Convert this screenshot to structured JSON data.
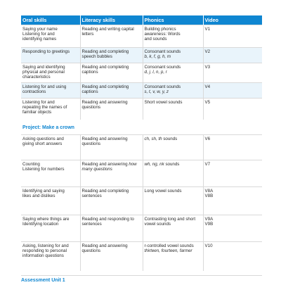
{
  "headers": [
    "Oral skills",
    "Literacy skills",
    "Phonics",
    "Video"
  ],
  "project_label": "Project: Make a crown",
  "rows_before": [
    {
      "oral": [
        "Saying your name",
        "Listening for and",
        "identifying names"
      ],
      "literacy": [
        "Reading and writing capital",
        "letters"
      ],
      "phonics": [
        "Building phonics",
        "awareness: Words",
        "and sounds"
      ],
      "phonics_italic": [],
      "video": [
        "V1"
      ],
      "height": 32,
      "alt": false
    },
    {
      "oral": [
        "Responding to greetings"
      ],
      "literacy": [
        "Reading and completing",
        "speech bubbles"
      ],
      "phonics": [
        "Consonant sounds"
      ],
      "phonics_italic": [
        "b, k, f, g, h, m"
      ],
      "video": [
        "V2"
      ],
      "height": 22,
      "alt": true
    },
    {
      "oral": [
        "Saying and identifying",
        "physical and personal",
        "characteristics"
      ],
      "literacy": [
        "Reading and completing",
        "captions"
      ],
      "phonics": [
        "Consonant sounds"
      ],
      "phonics_italic": [
        "d, j, l, n, p, r"
      ],
      "video": [
        "V3"
      ],
      "height": 28,
      "alt": false
    },
    {
      "oral": [
        "Listening for and using",
        "contractions"
      ],
      "literacy": [
        "Reading and completing",
        "captions"
      ],
      "phonics": [
        "Consonant sounds"
      ],
      "phonics_italic": [
        "s, t, v, w, y, z"
      ],
      "video": [
        "V4"
      ],
      "height": 22,
      "alt": true
    },
    {
      "oral": [
        "Listening for and",
        "repeating the names of",
        "familiar objects"
      ],
      "literacy": [
        "Reading and answering",
        "questions"
      ],
      "phonics": [
        "Short vowel sounds"
      ],
      "phonics_italic": [],
      "video": [
        "V5"
      ],
      "height": 30,
      "alt": false
    }
  ],
  "rows_after": [
    {
      "oral": [
        "Asking questions and",
        "giving short answers"
      ],
      "literacy": [
        "Reading and answering",
        "questions"
      ],
      "phonics_html": "<em>ch, sh, th</em> sounds",
      "video": [
        "V6"
      ],
      "height": 36,
      "alt": false
    },
    {
      "oral": [
        "Counting",
        "Listening for numbers"
      ],
      "literacy_html": "Reading and answering <em>how many questions</em>",
      "phonics_html": "<em>wh, ng, nk</em> sounds",
      "video": [
        "V7"
      ],
      "height": 38,
      "alt": false
    },
    {
      "oral": [
        "Identifying and saying",
        "likes and dislikes"
      ],
      "literacy": [
        "Reading and completing",
        "sentences"
      ],
      "phonics_html": "Long vowel sounds",
      "video": [
        "V8A",
        "V8B"
      ],
      "height": 40,
      "alt": false
    },
    {
      "oral": [
        "Saying where things are",
        "Identifying location"
      ],
      "literacy": [
        "Reading and responding to",
        "sentences"
      ],
      "phonics_html": "Contrasting long and short vowel sounds",
      "video": [
        "V9A",
        "V9B"
      ],
      "height": 38,
      "alt": false
    },
    {
      "oral": [
        "Asking, listening for and",
        "responding to personal",
        "information questions"
      ],
      "literacy": [
        "Reading and answering",
        "questions"
      ],
      "phonics_html": "r-controlled vowel sounds <em>thirteen, fourteen, farmer</em>",
      "video": [
        "V10"
      ],
      "height": 42,
      "alt": false
    }
  ],
  "footer_text": "Assessment Unit 1"
}
